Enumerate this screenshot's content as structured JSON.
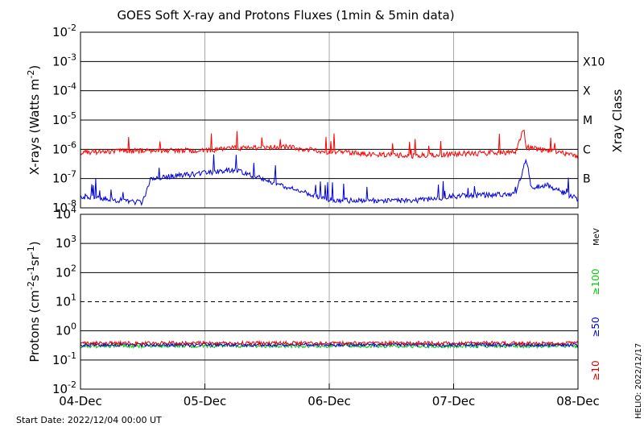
{
  "chart_data": [
    {
      "type": "line",
      "title": "GOES Soft X-ray and Protons Fluxes   (1min & 5min data)",
      "ylabel": "X-rays (Watts m^-2)",
      "y_scale": "log",
      "ylim": [
        1e-08,
        0.01
      ],
      "y_ticks": [
        {
          "base": "10",
          "exp": "-8"
        },
        {
          "base": "10",
          "exp": "-7"
        },
        {
          "base": "10",
          "exp": "-6"
        },
        {
          "base": "10",
          "exp": "-5"
        },
        {
          "base": "10",
          "exp": "-4"
        },
        {
          "base": "10",
          "exp": "-3"
        },
        {
          "base": "10",
          "exp": "-2"
        }
      ],
      "right_axis_label": "Xray Class",
      "right_ticks": [
        {
          "label": "B",
          "value": 1e-07
        },
        {
          "label": "C",
          "value": 1e-06
        },
        {
          "label": "M",
          "value": 1e-05
        },
        {
          "label": "X",
          "value": 0.0001
        },
        {
          "label": "X10",
          "value": 0.001
        }
      ],
      "x_ticks": [
        "04-Dec",
        "05-Dec",
        "06-Dec",
        "07-Dec",
        "08-Dec"
      ],
      "xlim": [
        "2022-12-04",
        "2022-12-08"
      ],
      "grid": "horizontal lines at each decade, vertical lines at each day",
      "series": [
        {
          "color": "#ff0000",
          "x": [
            "2022-12-04",
            "2022-12-04T12:00",
            "2022-12-05",
            "2022-12-05T06:00",
            "2022-12-05T16:00",
            "2022-12-06",
            "2022-12-06T16:00",
            "2022-12-07",
            "2022-12-07T12:00",
            "2022-12-07T13:30",
            "2022-12-07T14:00",
            "2022-12-07T18:00",
            "2022-12-08"
          ],
          "values": [
            8e-07,
            9e-07,
            9e-07,
            1.1e-06,
            1.2e-06,
            8e-07,
            6e-07,
            7e-07,
            8e-07,
            5.5e-06,
            1.2e-06,
            9e-07,
            6e-07
          ]
        },
        {
          "color": "#0000dd",
          "x": [
            "2022-12-04",
            "2022-12-04T12:00",
            "2022-12-04T13:30",
            "2022-12-05T06:00",
            "2022-12-05T16:00",
            "2022-12-06",
            "2022-12-06T16:00",
            "2022-12-07",
            "2022-12-07T12:00",
            "2022-12-07T14:00",
            "2022-12-07T15:00",
            "2022-12-07T18:00",
            "2022-12-08"
          ],
          "values": [
            2.5e-08,
            1.5e-08,
            1e-07,
            2e-07,
            5e-08,
            1.8e-08,
            1.7e-08,
            2.5e-08,
            3e-08,
            5e-07,
            5e-08,
            6e-08,
            2e-08
          ]
        }
      ]
    },
    {
      "type": "line",
      "ylabel": "Protons (cm^-2 s^-1 sr^-1)",
      "y_scale": "log",
      "ylim": [
        0.01,
        10000.0
      ],
      "y_ticks": [
        {
          "base": "10",
          "exp": "-2"
        },
        {
          "base": "10",
          "exp": "-1"
        },
        {
          "base": "10",
          "exp": "0"
        },
        {
          "base": "10",
          "exp": "1"
        },
        {
          "base": "10",
          "exp": "2"
        },
        {
          "base": "10",
          "exp": "3"
        },
        {
          "base": "10",
          "exp": "4"
        }
      ],
      "threshold": 10,
      "energy_unit": "MeV",
      "x_ticks": [
        "04-Dec",
        "05-Dec",
        "06-Dec",
        "07-Dec",
        "08-Dec"
      ],
      "xlim": [
        "2022-12-04",
        "2022-12-08"
      ],
      "series": [
        {
          "name": "≥100",
          "color": "#00cc00",
          "x": [
            "2022-12-04",
            "2022-12-08"
          ],
          "values": [
            0.3,
            0.3
          ]
        },
        {
          "name": "≥50",
          "color": "#0000dd",
          "x": [
            "2022-12-04",
            "2022-12-08"
          ],
          "values": [
            0.33,
            0.33
          ]
        },
        {
          "name": "≥10",
          "color": "#dd0000",
          "x": [
            "2022-12-04",
            "2022-12-08"
          ],
          "values": [
            0.38,
            0.38
          ]
        }
      ]
    }
  ],
  "footer": {
    "start_date": "Start Date: 2022/12/04 00:00 UT",
    "credit": "HELIO: 2022/12/17"
  }
}
